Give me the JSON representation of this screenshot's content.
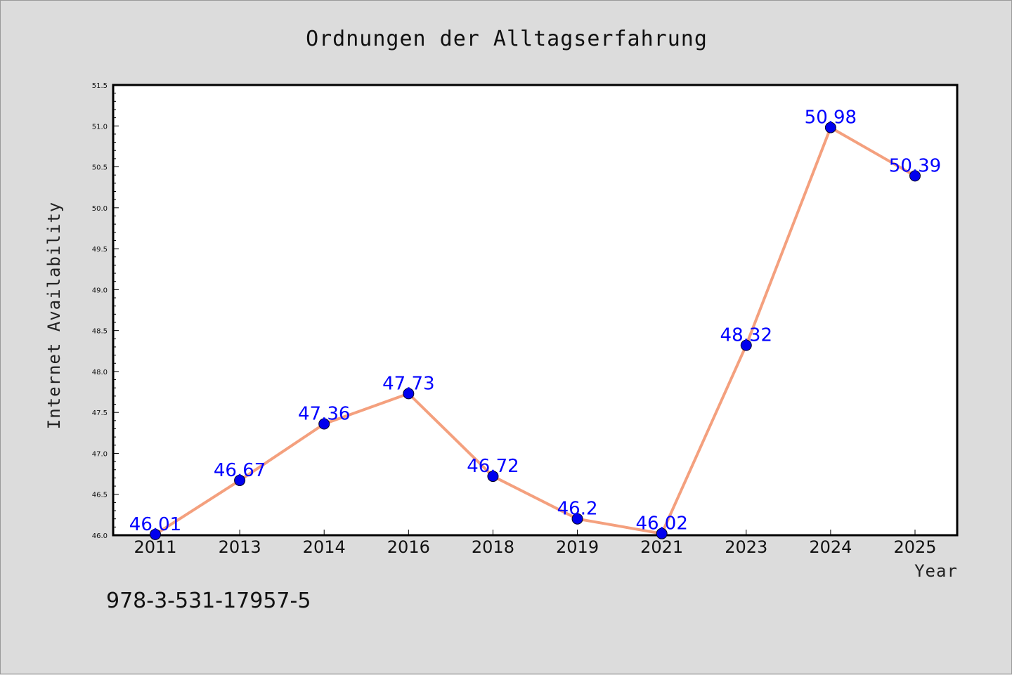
{
  "chart_data": {
    "type": "line",
    "title": "Ordnungen der Alltagserfahrung",
    "xlabel": "Year",
    "ylabel": "Internet Availability",
    "categories": [
      "2011",
      "2013",
      "2014",
      "2016",
      "2018",
      "2019",
      "2021",
      "2023",
      "2024",
      "2025"
    ],
    "series": [
      {
        "values": [
          46.01,
          46.67,
          47.36,
          47.73,
          46.72,
          46.2,
          46.02,
          48.32,
          50.98,
          50.39
        ],
        "line_color": "#f4a07e",
        "marker_color": "#0000ee"
      }
    ],
    "data_labels": [
      "46.01",
      "46.67",
      "47.36",
      "47.73",
      "46.72",
      "46.2",
      "46.02",
      "48.32",
      "50.98",
      "50.39"
    ],
    "ylim": [
      46.0,
      51.5
    ],
    "yticks": [
      "46.0",
      "46.5",
      "47.0",
      "47.5",
      "48.0",
      "48.5",
      "49.0",
      "49.5",
      "50.0",
      "50.5",
      "51.0",
      "51.5"
    ],
    "grid": false,
    "legend": "none",
    "annotation": "978-3-531-17957-5"
  }
}
